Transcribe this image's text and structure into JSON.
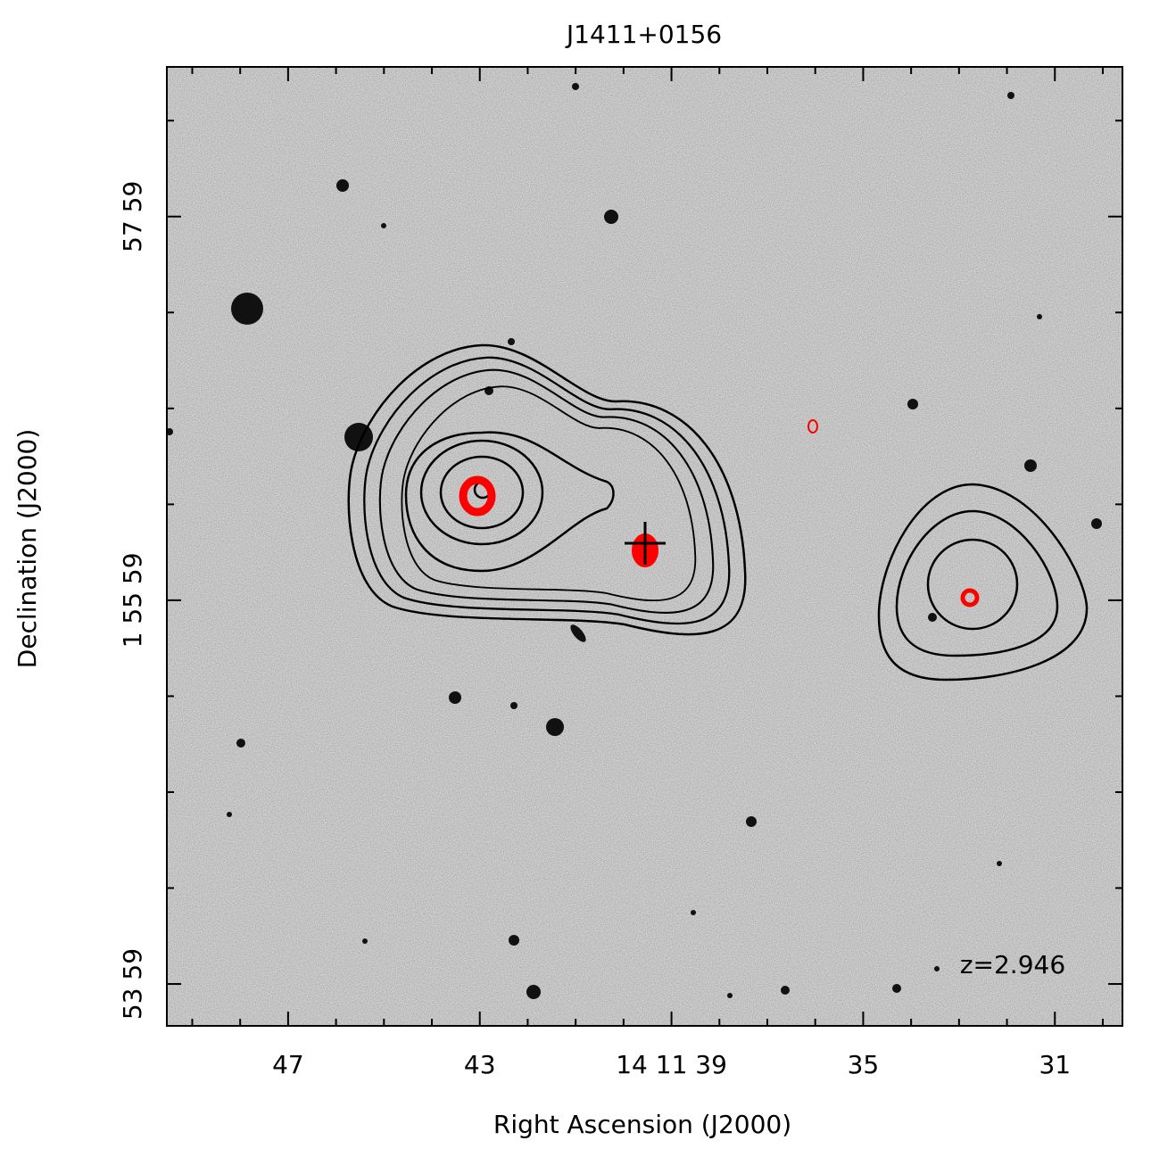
{
  "chart_data": {
    "type": "image",
    "title": "J1411+0156",
    "x_label": "Right Ascension (J2000)",
    "y_label": "Declination (J2000)",
    "annotation": "z=2.946",
    "xlim": [
      49.53,
      29.59
    ],
    "xticks": [
      47,
      43,
      {
        "value": 39,
        "label": "14 11 39"
      },
      35,
      31
    ],
    "xminor_ticks": [
      49,
      48,
      46,
      45,
      44,
      42,
      41,
      40,
      38,
      37,
      36,
      34,
      33,
      32,
      30
    ],
    "ylim": [
      3225.9,
      3525.8
    ],
    "yticks": [
      {
        "value": 3479,
        "label": "57 59"
      },
      {
        "value": 3359,
        "label": "1 55 59"
      },
      {
        "value": 3239,
        "label": "53 59"
      }
    ],
    "yminor_ticks": [
      3269,
      3299,
      3329,
      3389,
      3419,
      3449,
      3509
    ]
  }
}
